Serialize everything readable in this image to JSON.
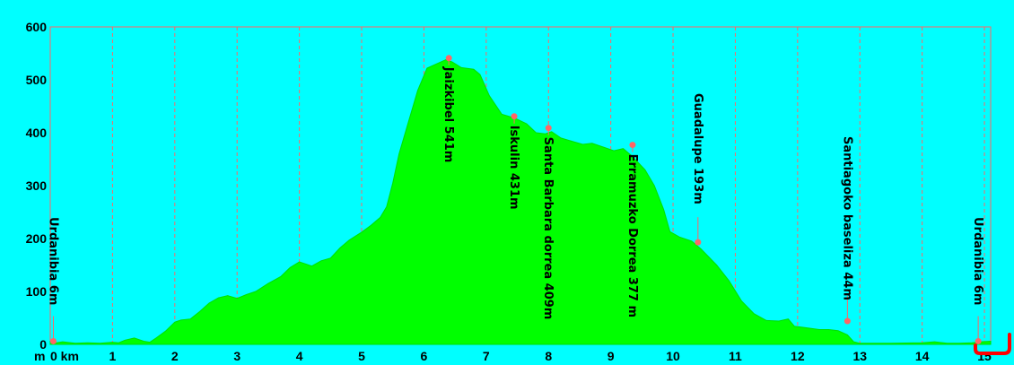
{
  "chart_data": {
    "type": "area",
    "title": "",
    "xlabel": "km",
    "ylabel": "m",
    "xlim": [
      0,
      15.1
    ],
    "ylim": [
      0,
      600
    ],
    "x_ticks": [
      "0",
      "1",
      "2",
      "3",
      "4",
      "5",
      "6",
      "7",
      "8",
      "9",
      "10",
      "11",
      "12",
      "13",
      "14",
      "15"
    ],
    "y_ticks": [
      "0",
      "100",
      "200",
      "300",
      "400",
      "500",
      "600"
    ],
    "x_unit": "m",
    "x_unit_suffix": "km",
    "grid": "vertical-dashed",
    "colors": {
      "background": "#00ffff",
      "fill": "#00ff00",
      "grid": "#ff6666",
      "marker": "#ff6666"
    },
    "series": [
      {
        "values": [
          [
            0,
            6
          ],
          [
            0.1,
            3
          ],
          [
            0.2,
            5
          ],
          [
            0.4,
            2
          ],
          [
            0.6,
            3
          ],
          [
            0.8,
            2
          ],
          [
            1.0,
            4
          ],
          [
            1.1,
            3
          ],
          [
            1.2,
            8
          ],
          [
            1.35,
            12
          ],
          [
            1.5,
            6
          ],
          [
            1.6,
            4
          ],
          [
            1.7,
            12
          ],
          [
            1.85,
            25
          ],
          [
            2.0,
            42
          ],
          [
            2.1,
            46
          ],
          [
            2.25,
            48
          ],
          [
            2.4,
            62
          ],
          [
            2.55,
            78
          ],
          [
            2.7,
            88
          ],
          [
            2.85,
            92
          ],
          [
            3.0,
            87
          ],
          [
            3.15,
            94
          ],
          [
            3.3,
            100
          ],
          [
            3.5,
            115
          ],
          [
            3.7,
            128
          ],
          [
            3.85,
            145
          ],
          [
            4.0,
            156
          ],
          [
            4.1,
            152
          ],
          [
            4.2,
            148
          ],
          [
            4.35,
            158
          ],
          [
            4.5,
            163
          ],
          [
            4.65,
            182
          ],
          [
            4.8,
            197
          ],
          [
            5.0,
            212
          ],
          [
            5.15,
            225
          ],
          [
            5.3,
            240
          ],
          [
            5.4,
            260
          ],
          [
            5.5,
            305
          ],
          [
            5.6,
            360
          ],
          [
            5.75,
            420
          ],
          [
            5.9,
            480
          ],
          [
            6.05,
            522
          ],
          [
            6.2,
            530
          ],
          [
            6.35,
            538
          ],
          [
            6.45,
            534
          ],
          [
            6.6,
            523
          ],
          [
            6.8,
            520
          ],
          [
            6.9,
            510
          ],
          [
            7.05,
            470
          ],
          [
            7.25,
            435
          ],
          [
            7.45,
            428
          ],
          [
            7.65,
            417
          ],
          [
            7.8,
            400
          ],
          [
            7.95,
            398
          ],
          [
            8.05,
            402
          ],
          [
            8.2,
            390
          ],
          [
            8.4,
            383
          ],
          [
            8.55,
            378
          ],
          [
            8.7,
            380
          ],
          [
            8.9,
            372
          ],
          [
            9.05,
            366
          ],
          [
            9.2,
            370
          ],
          [
            9.35,
            355
          ],
          [
            9.55,
            330
          ],
          [
            9.7,
            300
          ],
          [
            9.85,
            255
          ],
          [
            9.95,
            213
          ],
          [
            10.1,
            203
          ],
          [
            10.3,
            195
          ],
          [
            10.45,
            180
          ],
          [
            10.7,
            150
          ],
          [
            10.9,
            120
          ],
          [
            11.1,
            82
          ],
          [
            11.3,
            58
          ],
          [
            11.5,
            45
          ],
          [
            11.7,
            44
          ],
          [
            11.85,
            48
          ],
          [
            11.95,
            34
          ],
          [
            12.1,
            32
          ],
          [
            12.35,
            28
          ],
          [
            12.5,
            28
          ],
          [
            12.65,
            26
          ],
          [
            12.8,
            18
          ],
          [
            12.9,
            5
          ],
          [
            13.0,
            2
          ],
          [
            13.5,
            2
          ],
          [
            14.0,
            3
          ],
          [
            14.2,
            5
          ],
          [
            14.4,
            2
          ],
          [
            14.6,
            2
          ],
          [
            14.8,
            3
          ],
          [
            14.95,
            5
          ],
          [
            15.1,
            6
          ]
        ]
      }
    ],
    "waypoints": [
      {
        "label": "Urdanibia 6m",
        "x": 0.05,
        "y": 6
      },
      {
        "label": "Jaizkibel 541m",
        "x": 6.4,
        "y": 541
      },
      {
        "label": "Iskulin 431m",
        "x": 7.45,
        "y": 431
      },
      {
        "label": "Santa Barbara dorrea 409m",
        "x": 8.0,
        "y": 409
      },
      {
        "label": "Erramuzko Dorrea 377 m",
        "x": 9.35,
        "y": 377
      },
      {
        "label": "Guadalupe 193m",
        "x": 10.4,
        "y": 193
      },
      {
        "label": "Santiagoko baseliza 44m",
        "x": 12.8,
        "y": 44
      },
      {
        "label": "Urdanibia 6m",
        "x": 14.9,
        "y": 6
      }
    ]
  }
}
